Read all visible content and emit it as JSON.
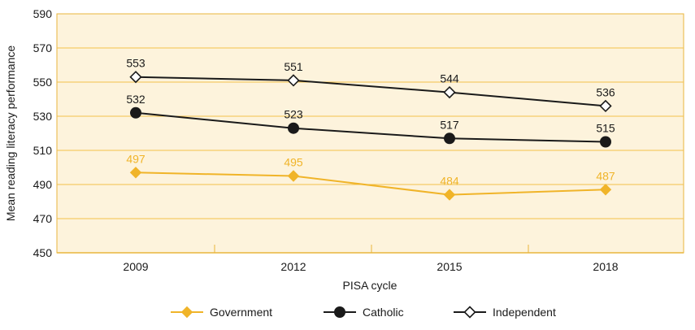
{
  "chart_data": {
    "type": "line",
    "categories": [
      "2009",
      "2012",
      "2015",
      "2018"
    ],
    "xlabel": "PISA cycle",
    "ylabel": "Mean reading literacy performance",
    "ylim": [
      450,
      590
    ],
    "yticks": [
      450,
      470,
      490,
      510,
      530,
      550,
      570,
      590
    ],
    "grid": true,
    "legend_position": "bottom",
    "series": [
      {
        "name": "Government",
        "values": [
          497,
          495,
          484,
          487
        ],
        "color": "#f0b429",
        "marker": "diamond",
        "labels": [
          "497",
          "495",
          "484",
          "487"
        ]
      },
      {
        "name": "Catholic",
        "values": [
          532,
          523,
          517,
          515
        ],
        "color": "#1a1a1a",
        "marker": "circle",
        "labels": [
          "532",
          "523",
          "517",
          "515"
        ]
      },
      {
        "name": "Independent",
        "values": [
          553,
          551,
          544,
          536
        ],
        "color": "#1a1a1a",
        "marker": "hollow-diamond",
        "labels": [
          "553",
          "551",
          "544",
          "536"
        ]
      }
    ],
    "colors": {
      "plot_background": "#fdf3dc",
      "gridline": "#f2c04a",
      "axis": "#e9b53c"
    }
  }
}
